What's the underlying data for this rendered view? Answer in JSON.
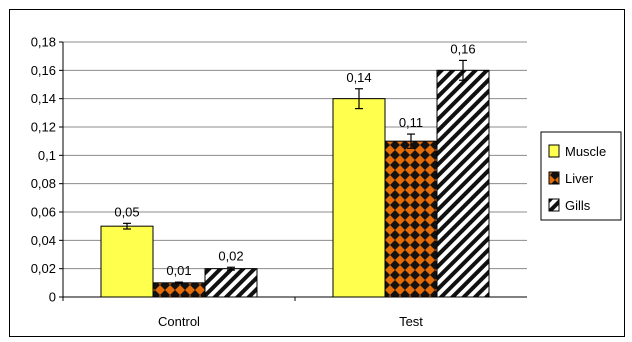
{
  "chart_data": {
    "type": "bar",
    "categories": [
      "Control",
      "Test"
    ],
    "series": [
      {
        "name": "Muscle",
        "values": [
          0.05,
          0.14
        ],
        "errors": [
          0.002,
          0.007
        ],
        "color": "#ffff4d",
        "pattern": "solid"
      },
      {
        "name": "Liver",
        "values": [
          0.01,
          0.11
        ],
        "errors": [
          0.0005,
          0.005
        ],
        "color": "#e36c0a",
        "pattern": "diamond-checker"
      },
      {
        "name": "Gills",
        "values": [
          0.02,
          0.16
        ],
        "errors": [
          0.001,
          0.007
        ],
        "color": "#ffffff",
        "pattern": "diagonal-hatch"
      }
    ],
    "data_labels": [
      [
        "0,05",
        "0,14"
      ],
      [
        "0,01",
        "0,11"
      ],
      [
        "0,02",
        "0,16"
      ]
    ],
    "ylim": [
      0,
      0.18
    ],
    "ytick_labels": [
      "0",
      "0,02",
      "0,04",
      "0,06",
      "0,08",
      "0,1",
      "0,12",
      "0,14",
      "0,16",
      "0,18"
    ],
    "title": "",
    "xlabel": "",
    "ylabel": "",
    "grid": true,
    "legend_position": "right"
  }
}
